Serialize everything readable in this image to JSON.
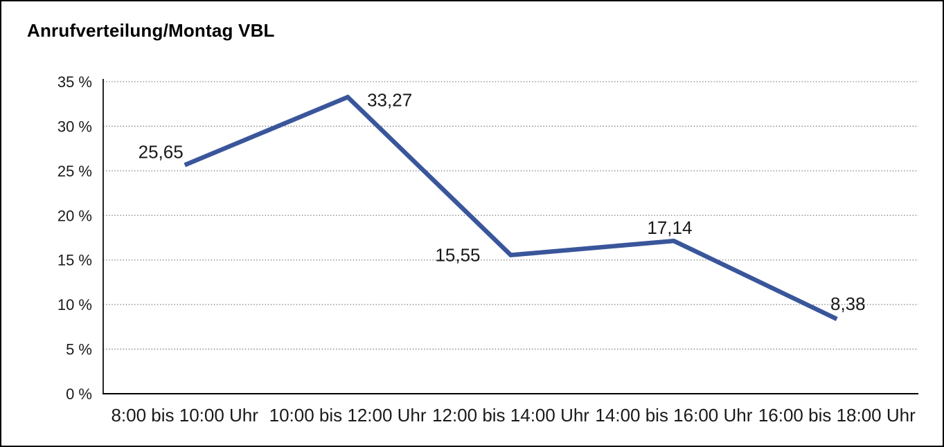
{
  "window": {
    "background_color": "#ffffff",
    "frame_border_color": "#000000"
  },
  "chart_data": {
    "type": "line",
    "title": "Anrufverteilung/Montag VBL",
    "categories": [
      "8:00 bis 10:00 Uhr",
      "10:00 bis 12:00 Uhr",
      "12:00 bis 14:00 Uhr",
      "14:00 bis 16:00 Uhr",
      "16:00 bis 18:00 Uhr"
    ],
    "points": [
      {
        "value": 25.65,
        "label": "25,65"
      },
      {
        "value": 33.27,
        "label": "33,27"
      },
      {
        "value": 15.55,
        "label": "15,55"
      },
      {
        "value": 17.14,
        "label": "17,14"
      },
      {
        "value": 8.38,
        "label": "8,38"
      }
    ],
    "y_ticks": [
      {
        "value": 0,
        "label": "0 %"
      },
      {
        "value": 5,
        "label": "5 %"
      },
      {
        "value": 10,
        "label": "10 %"
      },
      {
        "value": 15,
        "label": "15 %"
      },
      {
        "value": 20,
        "label": "20 %"
      },
      {
        "value": 25,
        "label": "25 %"
      },
      {
        "value": 30,
        "label": "30 %"
      },
      {
        "value": 35,
        "label": "35 %"
      }
    ],
    "ylim": [
      0,
      35
    ],
    "xlabel": "",
    "ylabel": "",
    "legend": "none",
    "grid": "horizontal-dotted",
    "value_format": "decimal-comma",
    "colors": {
      "line": "#3A569B",
      "gridline": "#6e6e6e",
      "axis": "#000000",
      "text": "#1a1a1a"
    }
  }
}
